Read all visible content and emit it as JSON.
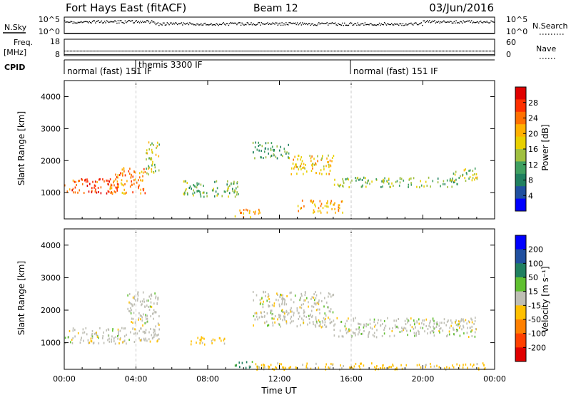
{
  "header": {
    "title": "Fort Hays East (fitACF)",
    "beam": "Beam 12",
    "date": "03/Jun/2016"
  },
  "nsky_panel": {
    "left_label": "N.Sky",
    "left_ticks": [
      "10^5",
      "10^0"
    ],
    "right_label": "N.Search",
    "right_ticks": [
      "10^5",
      "10^0"
    ]
  },
  "freq_panel": {
    "left_label_1": "Freq.",
    "left_label_2": "[MHz]",
    "left_ticks": [
      "18",
      "8"
    ],
    "right_label": "Nave",
    "right_ticks": [
      "60",
      "0"
    ]
  },
  "cpid_panel": {
    "label": "CPID",
    "modes": [
      {
        "text": "normal (fast) 151 IF",
        "start_hour": 0
      },
      {
        "text": "themis 3300 IF",
        "start_hour": 4
      },
      {
        "text": "normal (fast) 151 IF",
        "start_hour": 16
      }
    ]
  },
  "power_colorbar": {
    "label": "Power [dB]",
    "ticks": [
      "28",
      "24",
      "20",
      "16",
      "12",
      "8",
      "4"
    ],
    "colors": [
      "#e00000",
      "#ff3000",
      "#ff7000",
      "#ffb000",
      "#e8d000",
      "#a0c040",
      "#40a060",
      "#208060",
      "#2050a0",
      "#0000ff"
    ]
  },
  "velocity_colorbar": {
    "label": "Velocity [m s⁻¹]",
    "ticks": [
      "200",
      "100",
      "50",
      "15",
      "-15",
      "-50",
      "-100",
      "-200"
    ],
    "colors": [
      "#0000ff",
      "#2050a0",
      "#208060",
      "#60c030",
      "#bebeb4",
      "#ffc000",
      "#ff8000",
      "#ff4000",
      "#e00000"
    ]
  },
  "chart_data": {
    "type": "heatmap",
    "ylabel": "Slant Range [km]",
    "xlabel": "Time UT",
    "x_ticks": [
      "00:00",
      "04:00",
      "08:00",
      "12:00",
      "16:00",
      "20:00",
      "00:00"
    ],
    "x_range_hours": [
      0,
      24
    ],
    "y_ticks": [
      "1000",
      "2000",
      "3000",
      "4000"
    ],
    "y_range_km": [
      180,
      4500
    ],
    "power_regions": [
      {
        "t0": 0.0,
        "t1": 3.0,
        "r0": 1000,
        "r1": 1450,
        "power": 26
      },
      {
        "t0": 2.5,
        "t1": 4.5,
        "r0": 1000,
        "r1": 1800,
        "power": 22
      },
      {
        "t0": 4.5,
        "t1": 5.3,
        "r0": 1600,
        "r1": 2600,
        "power": 14
      },
      {
        "t0": 6.5,
        "t1": 9.8,
        "r0": 900,
        "r1": 1400,
        "power": 12
      },
      {
        "t0": 9.5,
        "t1": 11.0,
        "r0": 250,
        "r1": 500,
        "power": 20
      },
      {
        "t0": 10.5,
        "t1": 12.5,
        "r0": 2100,
        "r1": 2600,
        "power": 10
      },
      {
        "t0": 12.5,
        "t1": 15.0,
        "r0": 1600,
        "r1": 2200,
        "power": 18
      },
      {
        "t0": 13.0,
        "t1": 15.5,
        "r0": 400,
        "r1": 800,
        "power": 20
      },
      {
        "t0": 15.0,
        "t1": 22.0,
        "r0": 1200,
        "r1": 1500,
        "power": 12
      },
      {
        "t0": 21.5,
        "t1": 23.0,
        "r0": 1400,
        "r1": 1800,
        "power": 14
      }
    ],
    "velocity_regions": [
      {
        "t0": 0.0,
        "t1": 3.5,
        "r0": 1000,
        "r1": 1500,
        "velocity": 0
      },
      {
        "t0": 3.5,
        "t1": 5.3,
        "r0": 1000,
        "r1": 2600,
        "velocity": 0
      },
      {
        "t0": 7.0,
        "t1": 9.0,
        "r0": 950,
        "r1": 1200,
        "velocity": -30
      },
      {
        "t0": 9.5,
        "t1": 10.8,
        "r0": 250,
        "r1": 450,
        "velocity": 30
      },
      {
        "t0": 10.5,
        "t1": 15.0,
        "r0": 1500,
        "r1": 2600,
        "velocity": 0
      },
      {
        "t0": 10.5,
        "t1": 23.5,
        "r0": 200,
        "r1": 400,
        "velocity": -30
      },
      {
        "t0": 15.0,
        "t1": 23.0,
        "r0": 1200,
        "r1": 1800,
        "velocity": 0
      }
    ]
  },
  "random_seed": 12
}
